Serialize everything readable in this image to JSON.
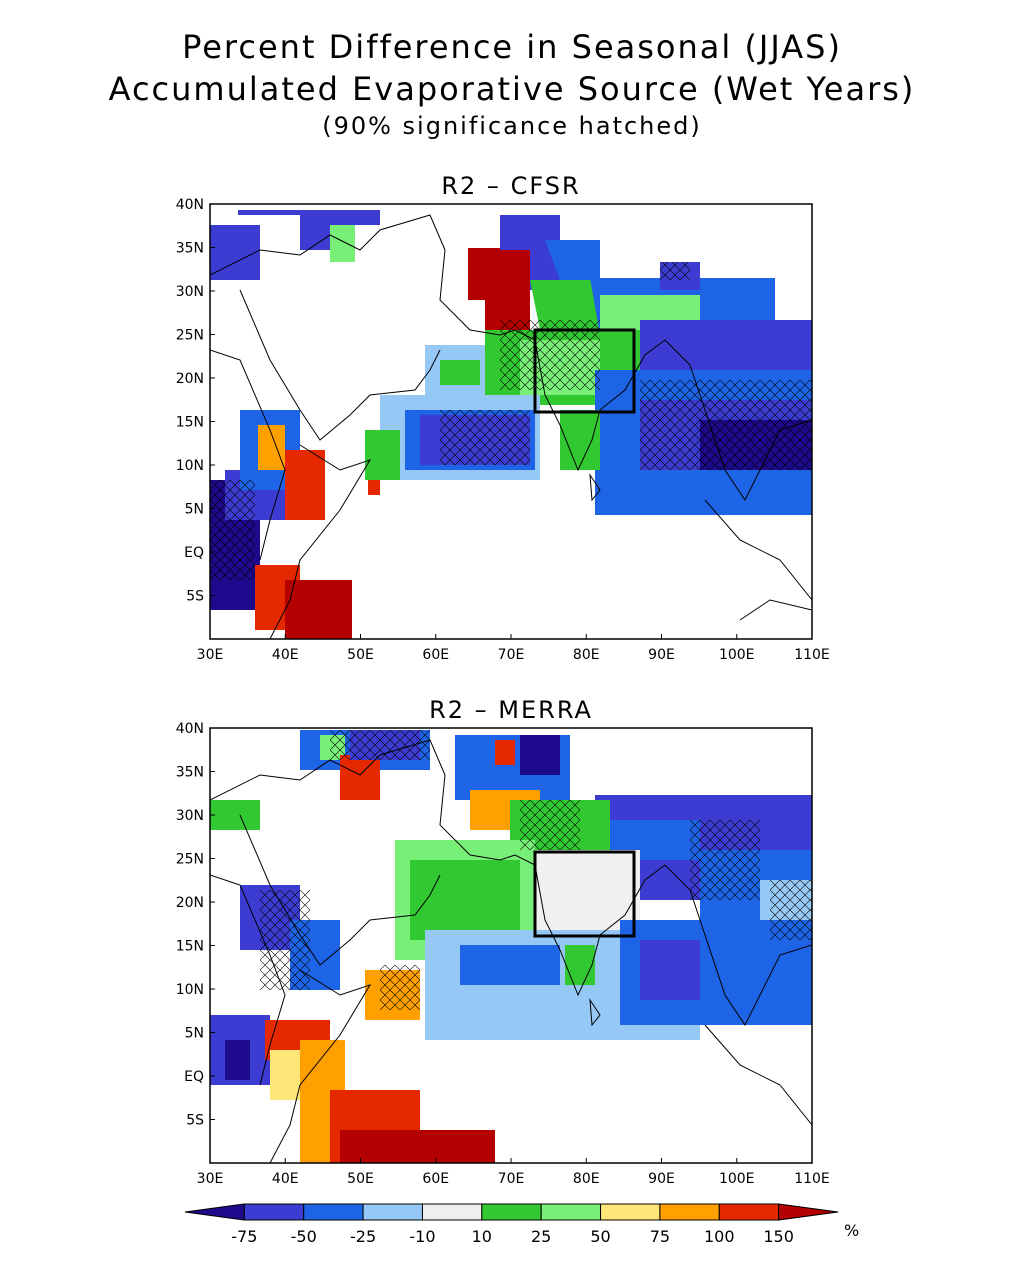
{
  "figure": {
    "title_line1": "Percent Difference in Seasonal (JJAS)",
    "title_line2": "Accumulated Evaporative Source (Wet Years)",
    "title_line3": "(90% significance hatched)"
  },
  "panels": [
    {
      "title": "R2 – CFSR",
      "lat_labels": [
        "40N",
        "35N",
        "30N",
        "25N",
        "20N",
        "15N",
        "10N",
        "5N",
        "EQ",
        "5S"
      ],
      "lon_labels": [
        "30E",
        "40E",
        "50E",
        "60E",
        "70E",
        "80E",
        "90E",
        "100E",
        "110E"
      ],
      "box_lon": [
        73,
        86
      ],
      "box_lat": [
        16,
        26
      ]
    },
    {
      "title": "R2 – MERRA",
      "lat_labels": [
        "40N",
        "35N",
        "30N",
        "25N",
        "20N",
        "15N",
        "10N",
        "5N",
        "EQ",
        "5S"
      ],
      "lon_labels": [
        "30E",
        "40E",
        "50E",
        "60E",
        "70E",
        "80E",
        "90E",
        "100E",
        "110E"
      ],
      "box_lon": [
        73,
        86
      ],
      "box_lat": [
        16,
        26
      ]
    }
  ],
  "colorbar": {
    "labels": [
      "-75",
      "-50",
      "-25",
      "-10",
      "10",
      "25",
      "50",
      "75",
      "100",
      "150"
    ],
    "unit": "%",
    "colors": [
      "#1e0a8c",
      "#3c3cd2",
      "#1e64e6",
      "#96c8f5",
      "#f0f0f0",
      "#32c832",
      "#78f078",
      "#ffe678",
      "#ffa000",
      "#e62800",
      "#b40000"
    ]
  },
  "map_extent": {
    "lon": [
      30,
      110
    ],
    "lat": [
      -10,
      40
    ]
  }
}
